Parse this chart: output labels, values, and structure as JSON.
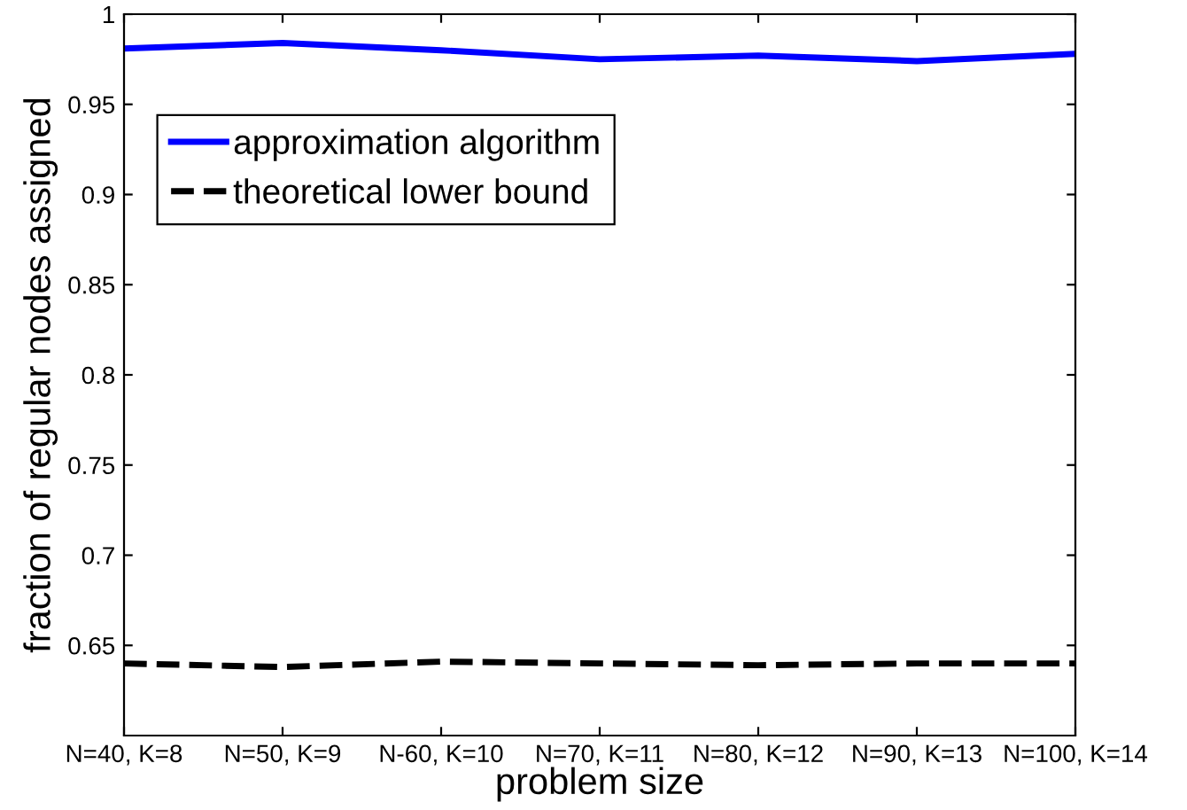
{
  "chart_data": {
    "type": "line",
    "xlabel": "problem size",
    "ylabel": "fraction of regular nodes assigned",
    "categories": [
      "N=40, K=8",
      "N=50, K=9",
      "N-60, K=10",
      "N=70, K=11",
      "N=80, K=12",
      "N=90, K=13",
      "N=100, K=14"
    ],
    "series": [
      {
        "name": "approximation algorithm",
        "color": "#0000ff",
        "line_style": "solid",
        "values": [
          0.981,
          0.984,
          0.98,
          0.975,
          0.977,
          0.974,
          0.978
        ]
      },
      {
        "name": "theoretical lower bound",
        "color": "#000000",
        "line_style": "dashed",
        "values": [
          0.64,
          0.638,
          0.641,
          0.64,
          0.639,
          0.64,
          0.64
        ]
      }
    ],
    "ylim": [
      0.6,
      1
    ],
    "yticks": [
      0.65,
      0.7,
      0.75,
      0.8,
      0.85,
      0.9,
      0.95,
      1
    ],
    "grid": false,
    "legend": "top left",
    "marker": "none"
  }
}
